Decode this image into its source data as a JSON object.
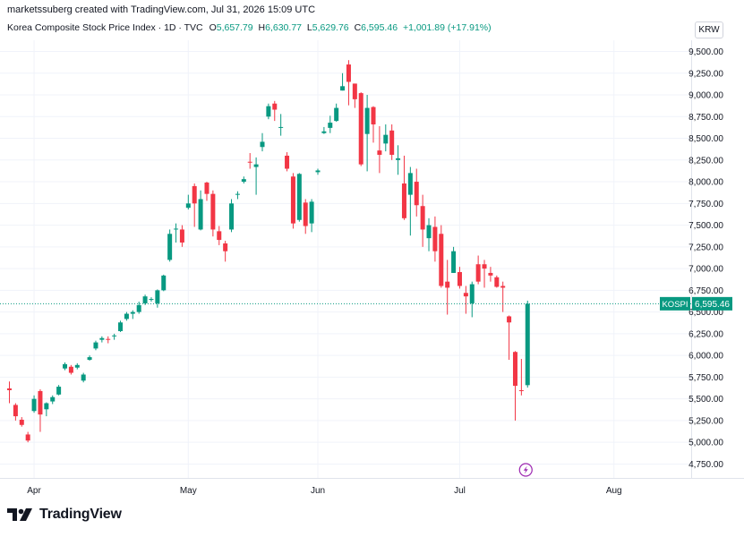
{
  "header": {
    "caption": "marketssuberg created with TradingView.com, Jul 31, 2026 15:09 UTC"
  },
  "legend": {
    "symbol_name": "Korea Composite Stock Price Index · 1D · TVC",
    "open_label": "O",
    "open": "5,657.79",
    "high_label": "H",
    "high": "6,630.77",
    "low_label": "L",
    "low": "5,629.76",
    "close_label": "C",
    "close": "6,595.46",
    "change": "+1,001.89 (+17.91%)"
  },
  "currency": "KRW",
  "price_tag": {
    "symbol": "KOSPI",
    "value": "6,595.46"
  },
  "brand": {
    "name": "TradingView"
  },
  "colors": {
    "up": "#089981",
    "down": "#f23645",
    "grid": "#f0f3fa",
    "text": "#131722",
    "event": "#9c27b0"
  },
  "icons": {
    "event_marker": "lightning-icon",
    "logo": "tradingview-logo-icon"
  },
  "chart_data": {
    "type": "candlestick",
    "y_ticks": [
      "9,500.00",
      "9,250.00",
      "9,000.00",
      "8,750.00",
      "8,500.00",
      "8,250.00",
      "8,000.00",
      "7,750.00",
      "7,500.00",
      "7,250.00",
      "7,000.00",
      "6,750.00",
      "6,500.00",
      "6,250.00",
      "6,000.00",
      "5,750.00",
      "5,500.00",
      "5,250.00",
      "5,000.00",
      "4,750.00"
    ],
    "y_tick_values": [
      9500,
      9250,
      9000,
      8750,
      8500,
      8250,
      8000,
      7750,
      7500,
      7250,
      7000,
      6750,
      6500,
      6250,
      6000,
      5750,
      5500,
      5250,
      5000,
      4750
    ],
    "ylim": [
      4650,
      9700
    ],
    "x_labels": [
      {
        "label": "Apr",
        "index": 4
      },
      {
        "label": "May",
        "index": 29
      },
      {
        "label": "Jun",
        "index": 50
      },
      {
        "label": "Jul",
        "index": 73
      },
      {
        "label": "Aug",
        "index": 98
      }
    ],
    "last_price": 6595.46,
    "candles": [
      [
        5620,
        5600,
        5700,
        5450
      ],
      [
        5430,
        5300,
        5450,
        5250
      ],
      [
        5260,
        5200,
        5290,
        5180
      ],
      [
        5090,
        5020,
        5120,
        5000
      ],
      [
        5360,
        5500,
        5540,
        5340
      ],
      [
        5590,
        5320,
        5610,
        5120
      ],
      [
        5380,
        5450,
        5460,
        5300
      ],
      [
        5470,
        5520,
        5540,
        5440
      ],
      [
        5550,
        5640,
        5660,
        5540
      ],
      [
        5850,
        5900,
        5920,
        5830
      ],
      [
        5870,
        5800,
        5890,
        5780
      ],
      [
        5860,
        5890,
        5910,
        5840
      ],
      [
        5710,
        5780,
        5800,
        5690
      ],
      [
        5950,
        5980,
        6000,
        5940
      ],
      [
        6080,
        6150,
        6170,
        6060
      ],
      [
        6180,
        6200,
        6220,
        6150
      ],
      [
        6190,
        6180,
        6220,
        6140
      ],
      [
        6220,
        6230,
        6250,
        6180
      ],
      [
        6280,
        6380,
        6400,
        6270
      ],
      [
        6420,
        6480,
        6500,
        6400
      ],
      [
        6480,
        6500,
        6520,
        6420
      ],
      [
        6500,
        6580,
        6620,
        6480
      ],
      [
        6600,
        6680,
        6700,
        6580
      ],
      [
        6650,
        6650,
        6670,
        6620
      ],
      [
        6600,
        6750,
        6760,
        6550
      ],
      [
        6750,
        6920,
        6930,
        6740
      ],
      [
        7100,
        7400,
        7450,
        7080
      ],
      [
        7450,
        7460,
        7520,
        7300
      ],
      [
        7450,
        7300,
        7500,
        7250
      ],
      [
        7700,
        7750,
        7850,
        7680
      ],
      [
        7950,
        7750,
        7980,
        7480
      ],
      [
        7450,
        7800,
        7900,
        7440
      ],
      [
        7990,
        7860,
        8000,
        7780
      ],
      [
        7860,
        7450,
        7900,
        7370
      ],
      [
        7430,
        7330,
        7490,
        7270
      ],
      [
        7290,
        7200,
        7320,
        7080
      ],
      [
        7450,
        7750,
        7800,
        7420
      ],
      [
        7850,
        7860,
        7890,
        7800
      ],
      [
        8000,
        8030,
        8060,
        7980
      ],
      [
        8230,
        8220,
        8330,
        8150
      ],
      [
        8170,
        8200,
        8280,
        7850
      ],
      [
        8400,
        8460,
        8560,
        8350
      ],
      [
        8750,
        8870,
        8900,
        8720
      ],
      [
        8900,
        8830,
        8930,
        8700
      ],
      [
        8620,
        8630,
        8780,
        8530
      ],
      [
        8300,
        8150,
        8340,
        8120
      ],
      [
        8060,
        7520,
        8100,
        7460
      ],
      [
        7560,
        8090,
        8100,
        7540
      ],
      [
        7760,
        7490,
        7800,
        7400
      ],
      [
        7520,
        7770,
        7800,
        7420
      ],
      [
        8110,
        8130,
        8150,
        8080
      ],
      [
        8560,
        8580,
        8630,
        8550
      ],
      [
        8620,
        8680,
        8760,
        8560
      ],
      [
        8700,
        8850,
        8900,
        8690
      ],
      [
        9050,
        9100,
        9250,
        9050
      ],
      [
        9350,
        9150,
        9400,
        8880
      ],
      [
        9130,
        8950,
        9130,
        8850
      ],
      [
        9020,
        8200,
        9030,
        8180
      ],
      [
        8550,
        8850,
        9000,
        8120
      ],
      [
        8860,
        8660,
        8870,
        8450
      ],
      [
        8360,
        8310,
        8640,
        8100
      ],
      [
        8440,
        8540,
        8660,
        8350
      ],
      [
        8590,
        8310,
        8660,
        8250
      ],
      [
        8250,
        8270,
        8420,
        8080
      ],
      [
        7980,
        7580,
        8300,
        7560
      ],
      [
        7850,
        8100,
        8170,
        7380
      ],
      [
        8000,
        7730,
        8150,
        7600
      ],
      [
        7720,
        7450,
        7850,
        7250
      ],
      [
        7350,
        7500,
        7580,
        7200
      ],
      [
        7480,
        7200,
        7600,
        7080
      ],
      [
        7400,
        6800,
        7500,
        6780
      ],
      [
        6850,
        6780,
        7100,
        6470
      ],
      [
        6950,
        7200,
        7250,
        6950
      ],
      [
        6960,
        6800,
        7020,
        6770
      ],
      [
        6720,
        6680,
        6800,
        6480
      ],
      [
        6600,
        6820,
        6850,
        6440
      ],
      [
        7050,
        6850,
        7150,
        6820
      ],
      [
        7050,
        7000,
        7100,
        6780
      ],
      [
        6950,
        6920,
        7020,
        6850
      ],
      [
        6900,
        6790,
        6920,
        6780
      ],
      [
        6800,
        6780,
        6850,
        6500
      ],
      [
        6450,
        6380,
        6460,
        5950
      ],
      [
        6040,
        5650,
        6050,
        5250
      ],
      [
        5600,
        5590,
        5960,
        5540
      ],
      [
        5657.79,
        6595.46,
        6630.77,
        5629.76
      ]
    ]
  }
}
